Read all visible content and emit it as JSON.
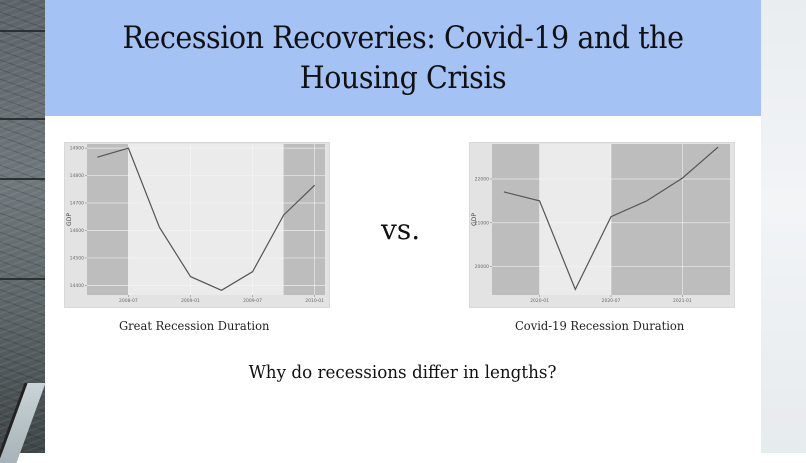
{
  "slide": {
    "title": "Recession Recoveries: Covid-19 and the Housing Crisis",
    "vs_label": "vs.",
    "question": "Why do recessions differ in lengths?",
    "colors": {
      "header_bg": "#a4c2f4",
      "panel_bg": "#ebebeb",
      "shade": "#bdbdbd",
      "line": "#555555"
    }
  },
  "chart_data": [
    {
      "type": "line",
      "title": "",
      "caption": "Great Recession Duration",
      "xlabel": "",
      "ylabel": "GDP",
      "x": [
        "2008-04",
        "2008-07",
        "2008-10",
        "2009-01",
        "2009-04",
        "2009-07",
        "2009-10",
        "2010-01"
      ],
      "values": [
        14867,
        14900,
        14612,
        14432,
        14382,
        14450,
        14656,
        14765
      ],
      "x_tick_labels": [
        "2008-07",
        "2009-01",
        "2009-07",
        "2010-01"
      ],
      "y_tick_labels": [
        "14400",
        "14500",
        "14600",
        "14700",
        "14800",
        "14900"
      ],
      "ylim": [
        14365,
        14915
      ],
      "shaded_regions": [
        [
          "2008-03",
          "2008-07"
        ],
        [
          "2009-10",
          "2010-02"
        ]
      ],
      "grid": true,
      "legend": "none"
    },
    {
      "type": "line",
      "title": "",
      "caption": "Covid-19 Recession Duration",
      "xlabel": "",
      "ylabel": "GDP",
      "x": [
        "2019-10",
        "2020-01",
        "2020-04",
        "2020-07",
        "2020-10",
        "2021-01",
        "2021-04"
      ],
      "values": [
        21705,
        21500,
        19477,
        21140,
        21500,
        22020,
        22730
      ],
      "x_tick_labels": [
        "2020-01",
        "2020-07",
        "2021-01"
      ],
      "y_tick_labels": [
        "20000",
        "21000",
        "22000"
      ],
      "ylim": [
        19350,
        22800
      ],
      "shaded_regions": [
        [
          "2019-09",
          "2020-01"
        ],
        [
          "2020-07",
          "2021-05"
        ]
      ],
      "grid": true,
      "legend": "none"
    }
  ]
}
